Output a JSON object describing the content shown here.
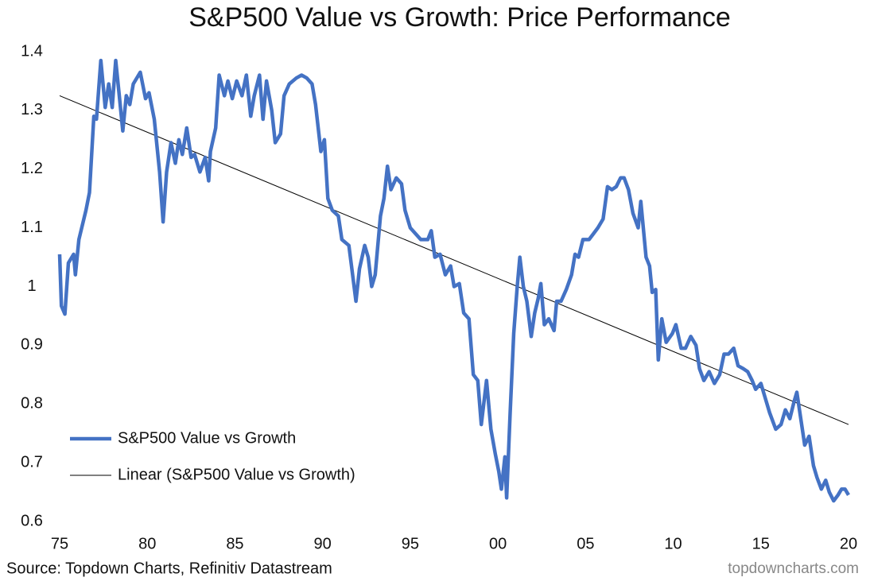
{
  "chart_data": {
    "type": "line",
    "title": "S&P500 Value vs Growth: Price Performance",
    "source": "Source: Topdown Charts, Refinitiv Datastream",
    "watermark": "topdowncharts.com",
    "xlim": [
      1975,
      2020
    ],
    "xticks": [
      {
        "value": 1975,
        "label": "75"
      },
      {
        "value": 1980,
        "label": "80"
      },
      {
        "value": 1985,
        "label": "85"
      },
      {
        "value": 1990,
        "label": "90"
      },
      {
        "value": 1995,
        "label": "95"
      },
      {
        "value": 2000,
        "label": "00"
      },
      {
        "value": 2005,
        "label": "05"
      },
      {
        "value": 2010,
        "label": "10"
      },
      {
        "value": 2015,
        "label": "15"
      },
      {
        "value": 2020,
        "label": "20"
      }
    ],
    "ylim": [
      0.6,
      1.4
    ],
    "yticks": [
      0.6,
      0.7,
      0.8,
      0.9,
      1,
      1.1,
      1.2,
      1.3,
      1.4
    ],
    "grid": false,
    "legend": "lower left",
    "series": [
      {
        "name": "S&P500 Value vs Growth",
        "color": "#4472c4",
        "x": [
          1975.0,
          1975.1,
          1975.3,
          1975.5,
          1975.8,
          1975.9,
          1976.1,
          1976.5,
          1976.7,
          1976.95,
          1977.1,
          1977.35,
          1977.6,
          1977.8,
          1978.0,
          1978.2,
          1978.4,
          1978.6,
          1978.8,
          1979.0,
          1979.2,
          1979.6,
          1979.9,
          1980.1,
          1980.4,
          1980.7,
          1980.9,
          1981.1,
          1981.35,
          1981.6,
          1981.8,
          1982.0,
          1982.25,
          1982.5,
          1982.7,
          1983.0,
          1983.3,
          1983.5,
          1983.6,
          1983.9,
          1984.1,
          1984.4,
          1984.6,
          1984.85,
          1985.1,
          1985.4,
          1985.65,
          1985.9,
          1986.1,
          1986.4,
          1986.6,
          1986.8,
          1987.1,
          1987.3,
          1987.6,
          1987.8,
          1988.1,
          1988.5,
          1988.8,
          1989.1,
          1989.4,
          1989.6,
          1989.9,
          1990.1,
          1990.3,
          1990.55,
          1990.9,
          1991.1,
          1991.5,
          1991.65,
          1991.9,
          1992.1,
          1992.4,
          1992.6,
          1992.8,
          1993.0,
          1993.3,
          1993.5,
          1993.7,
          1993.9,
          1994.2,
          1994.5,
          1994.7,
          1995.0,
          1995.3,
          1995.6,
          1996.0,
          1996.2,
          1996.4,
          1996.7,
          1997.0,
          1997.3,
          1997.5,
          1997.8,
          1998.05,
          1998.35,
          1998.6,
          1998.85,
          1999.05,
          1999.35,
          1999.6,
          1999.85,
          2000.05,
          2000.2,
          2000.4,
          2000.5,
          2000.7,
          2000.9,
          2001.1,
          2001.25,
          2001.45,
          2001.65,
          2001.9,
          2002.1,
          2002.3,
          2002.45,
          2002.65,
          2002.9,
          2003.2,
          2003.35,
          2003.6,
          2003.9,
          2004.2,
          2004.4,
          2004.6,
          2004.85,
          2005.2,
          2005.45,
          2005.7,
          2006.0,
          2006.25,
          2006.5,
          2006.75,
          2007.0,
          2007.2,
          2007.45,
          2007.7,
          2008.0,
          2008.15,
          2008.45,
          2008.65,
          2008.8,
          2009.0,
          2009.15,
          2009.35,
          2009.6,
          2009.95,
          2010.15,
          2010.45,
          2010.7,
          2011.0,
          2011.3,
          2011.5,
          2011.75,
          2012.05,
          2012.35,
          2012.65,
          2012.9,
          2013.15,
          2013.45,
          2013.7,
          2014.0,
          2014.25,
          2014.5,
          2014.7,
          2015.0,
          2015.25,
          2015.5,
          2015.85,
          2016.15,
          2016.4,
          2016.65,
          2016.9,
          2017.05,
          2017.3,
          2017.5,
          2017.75,
          2018.0,
          2018.2,
          2018.45,
          2018.7,
          2018.9,
          2019.15,
          2019.4,
          2019.6,
          2019.8,
          2020.0
        ],
        "values": [
          1.055,
          0.967,
          0.953,
          1.04,
          1.055,
          1.02,
          1.08,
          1.13,
          1.16,
          1.29,
          1.285,
          1.385,
          1.305,
          1.345,
          1.305,
          1.385,
          1.325,
          1.265,
          1.325,
          1.31,
          1.345,
          1.365,
          1.32,
          1.33,
          1.285,
          1.195,
          1.11,
          1.195,
          1.245,
          1.21,
          1.25,
          1.225,
          1.27,
          1.22,
          1.225,
          1.195,
          1.22,
          1.18,
          1.23,
          1.27,
          1.36,
          1.325,
          1.35,
          1.32,
          1.35,
          1.325,
          1.36,
          1.29,
          1.325,
          1.36,
          1.285,
          1.35,
          1.3,
          1.245,
          1.26,
          1.325,
          1.345,
          1.355,
          1.36,
          1.355,
          1.345,
          1.31,
          1.23,
          1.25,
          1.15,
          1.13,
          1.12,
          1.08,
          1.07,
          1.035,
          0.975,
          1.03,
          1.07,
          1.05,
          1.0,
          1.02,
          1.12,
          1.15,
          1.205,
          1.165,
          1.185,
          1.175,
          1.13,
          1.1,
          1.09,
          1.08,
          1.08,
          1.095,
          1.05,
          1.055,
          1.02,
          1.035,
          1.0,
          1.005,
          0.955,
          0.945,
          0.85,
          0.84,
          0.765,
          0.84,
          0.757,
          0.715,
          0.685,
          0.655,
          0.71,
          0.64,
          0.785,
          0.92,
          1.0,
          1.05,
          1.0,
          0.975,
          0.915,
          0.955,
          0.98,
          1.005,
          0.935,
          0.945,
          0.925,
          0.975,
          0.975,
          0.995,
          1.02,
          1.055,
          1.05,
          1.08,
          1.08,
          1.09,
          1.1,
          1.115,
          1.17,
          1.165,
          1.17,
          1.185,
          1.185,
          1.165,
          1.125,
          1.1,
          1.145,
          1.05,
          1.035,
          0.99,
          0.995,
          0.875,
          0.945,
          0.905,
          0.92,
          0.935,
          0.895,
          0.895,
          0.915,
          0.9,
          0.86,
          0.84,
          0.855,
          0.835,
          0.85,
          0.885,
          0.885,
          0.895,
          0.865,
          0.86,
          0.855,
          0.84,
          0.825,
          0.835,
          0.81,
          0.785,
          0.757,
          0.765,
          0.79,
          0.775,
          0.805,
          0.82,
          0.77,
          0.73,
          0.745,
          0.695,
          0.675,
          0.655,
          0.67,
          0.65,
          0.635,
          0.645,
          0.655,
          0.655,
          0.645
        ]
      },
      {
        "name": "Linear (S&P500 Value vs Growth)",
        "color": "#000000",
        "x": [
          1975,
          2020
        ],
        "values": [
          1.325,
          0.765
        ]
      }
    ]
  }
}
